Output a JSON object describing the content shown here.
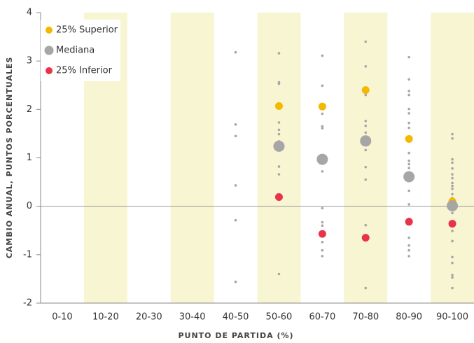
{
  "chart_data": {
    "type": "strip",
    "y_label": "CAMBIO ANUAL, PUNTOS PORCENTUALES",
    "x_label": "PUNTO DE PARTIDA (%)",
    "categories": [
      "0-10",
      "10-20",
      "20-30",
      "30-40",
      "40-50",
      "50-60",
      "60-70",
      "70-80",
      "80-90",
      "90-100"
    ],
    "ylim": [
      -2,
      4
    ],
    "yticks": [
      -2,
      -1,
      0,
      1,
      2,
      3,
      4
    ],
    "band_color": "#f7f5d2",
    "zero_line": true,
    "legend": "top-left",
    "series": [
      {
        "name": "25% Superior",
        "color": "#f5b800",
        "values": [
          null,
          null,
          null,
          null,
          null,
          2.07,
          2.06,
          2.4,
          1.39,
          0.1
        ]
      },
      {
        "name": "Mediana",
        "color": "#a6a6a6",
        "values": [
          null,
          null,
          null,
          null,
          null,
          1.24,
          0.97,
          1.35,
          0.61,
          0.01
        ]
      },
      {
        "name": "25% Inferior",
        "color": "#e8334a",
        "values": [
          null,
          null,
          null,
          null,
          null,
          0.19,
          -0.57,
          -0.65,
          -0.32,
          -0.36
        ]
      }
    ],
    "dots_color": "#a6a6a6",
    "dots": [
      [],
      [],
      [],
      [],
      [
        3.18,
        1.69,
        1.45,
        0.43,
        -0.29,
        -1.56
      ],
      [
        3.16,
        2.53,
        2.56,
        1.73,
        1.58,
        1.49,
        1.34,
        1.18,
        0.82,
        0.66,
        -1.4
      ],
      [
        3.11,
        2.49,
        1.91,
        1.65,
        1.61,
        0.72,
        -0.04,
        -0.33,
        -0.4,
        -0.74,
        -0.91,
        -1.03
      ],
      [
        3.4,
        2.89,
        2.3,
        1.76,
        1.66,
        1.52,
        1.43,
        1.16,
        0.81,
        0.55,
        -0.39,
        -1.69
      ],
      [
        3.08,
        2.62,
        2.38,
        2.3,
        2.01,
        1.92,
        1.72,
        1.62,
        1.39,
        1.1,
        0.94,
        0.87,
        0.79,
        0.32,
        0.04,
        -0.26,
        -0.65,
        -0.81,
        -0.91,
        -1.03
      ],
      [
        1.49,
        1.4,
        0.97,
        0.9,
        0.78,
        0.66,
        0.58,
        0.48,
        0.42,
        0.36,
        0.25,
        0.17,
        0.12,
        0.0,
        -0.14,
        -0.33,
        -0.51,
        -0.72,
        -1.05,
        -1.17,
        -1.42,
        -1.47,
        -1.69
      ]
    ]
  }
}
